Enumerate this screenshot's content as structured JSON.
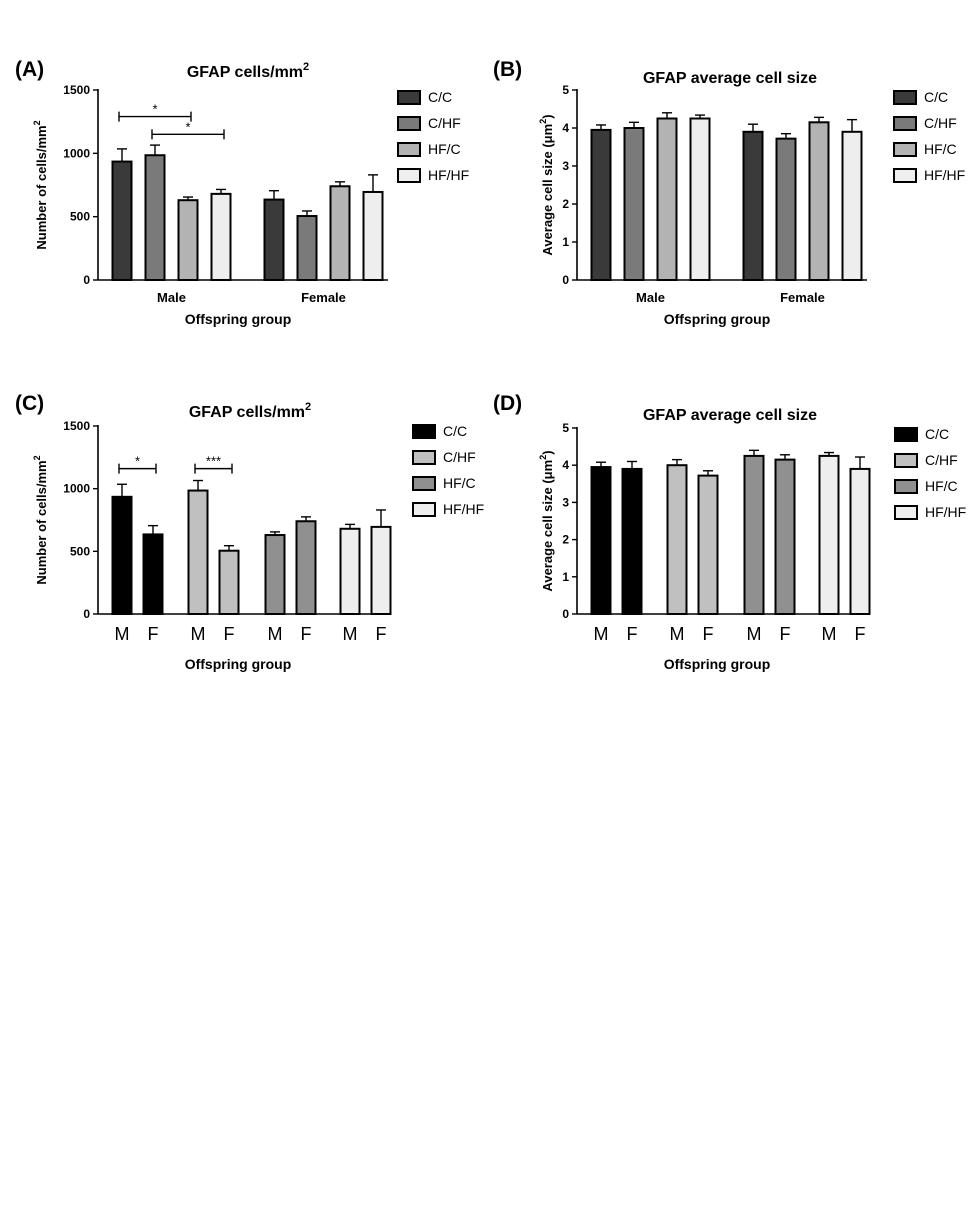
{
  "chart_data": [
    {
      "panel": "(A)",
      "type": "bar",
      "title": "GFAP cells/mm",
      "title_sup": "2",
      "xlabel": "Offspring group",
      "ylabel": "Number of cells/mm",
      "ylabel_sup": "2",
      "ylim": [
        0,
        1500
      ],
      "yticks": [
        "0",
        "500",
        "1000",
        "1500"
      ],
      "categories": [
        "Male",
        "Female"
      ],
      "series": [
        {
          "name": "C/C",
          "color": "#3a3a3a",
          "values": [
            935,
            635
          ],
          "errors": [
            100,
            70
          ]
        },
        {
          "name": "C/HF",
          "color": "#7a7a7a",
          "values": [
            985,
            505
          ],
          "errors": [
            80,
            40
          ]
        },
        {
          "name": "HF/C",
          "color": "#b3b3b3",
          "values": [
            630,
            740
          ],
          "errors": [
            25,
            35
          ]
        },
        {
          "name": "HF/HF",
          "color": "#eeeeee",
          "values": [
            680,
            695
          ],
          "errors": [
            35,
            135
          ]
        }
      ],
      "significance": [
        {
          "label": "*",
          "from": "Male C/C",
          "to": "Male HF/C",
          "y": 1290
        },
        {
          "label": "*",
          "from": "Male C/HF",
          "to": "Male HF/HF",
          "y": 1150
        }
      ],
      "legend": "right"
    },
    {
      "panel": "(B)",
      "type": "bar",
      "title": "GFAP average cell size",
      "xlabel": "Offspring group",
      "ylabel": "Average cell size (μm",
      "ylabel_sup": "2",
      "ylabel_close": ")",
      "ylim": [
        0,
        5
      ],
      "yticks": [
        "0",
        "1",
        "2",
        "3",
        "4",
        "5"
      ],
      "categories": [
        "Male",
        "Female"
      ],
      "series": [
        {
          "name": "C/C",
          "color": "#3a3a3a",
          "values": [
            3.95,
            3.9
          ],
          "errors": [
            0.13,
            0.2
          ]
        },
        {
          "name": "C/HF",
          "color": "#7a7a7a",
          "values": [
            4.0,
            3.72
          ],
          "errors": [
            0.15,
            0.13
          ]
        },
        {
          "name": "HF/C",
          "color": "#b3b3b3",
          "values": [
            4.25,
            4.15
          ],
          "errors": [
            0.15,
            0.13
          ]
        },
        {
          "name": "HF/HF",
          "color": "#eeeeee",
          "values": [
            4.25,
            3.9
          ],
          "errors": [
            0.09,
            0.32
          ]
        }
      ],
      "legend": "right"
    },
    {
      "panel": "(C)",
      "type": "bar",
      "title": "GFAP cells/mm",
      "title_sup": "2",
      "xlabel": "Offspring group",
      "ylabel": "Number of cells/mm",
      "ylabel_sup": "2",
      "ylim": [
        0,
        1500
      ],
      "yticks": [
        "0",
        "500",
        "1000",
        "1500"
      ],
      "categories": [
        "M",
        "F"
      ],
      "series": [
        {
          "name": "C/C",
          "color": "#000000",
          "values": [
            935,
            635
          ],
          "errors": [
            100,
            70
          ]
        },
        {
          "name": "C/HF",
          "color": "#c0c0c0",
          "values": [
            985,
            505
          ],
          "errors": [
            80,
            40
          ]
        },
        {
          "name": "HF/C",
          "color": "#909090",
          "values": [
            630,
            740
          ],
          "errors": [
            25,
            35
          ]
        },
        {
          "name": "HF/HF",
          "color": "#eeeeee",
          "values": [
            680,
            695
          ],
          "errors": [
            35,
            135
          ]
        }
      ],
      "significance": [
        {
          "label": "*",
          "group": "C/C",
          "y": 1160
        },
        {
          "label": "***",
          "group": "C/HF",
          "y": 1160
        }
      ],
      "legend": "right"
    },
    {
      "panel": "(D)",
      "type": "bar",
      "title": "GFAP average cell size",
      "xlabel": "Offspring group",
      "ylabel": "Average cell size (μm",
      "ylabel_sup": "2",
      "ylabel_close": ")",
      "ylim": [
        0,
        5
      ],
      "yticks": [
        "0",
        "1",
        "2",
        "3",
        "4",
        "5"
      ],
      "categories": [
        "M",
        "F"
      ],
      "series": [
        {
          "name": "C/C",
          "color": "#000000",
          "values": [
            3.95,
            3.9
          ],
          "errors": [
            0.13,
            0.2
          ]
        },
        {
          "name": "C/HF",
          "color": "#c0c0c0",
          "values": [
            4.0,
            3.72
          ],
          "errors": [
            0.15,
            0.13
          ]
        },
        {
          "name": "HF/C",
          "color": "#909090",
          "values": [
            4.25,
            4.15
          ],
          "errors": [
            0.15,
            0.13
          ]
        },
        {
          "name": "HF/HF",
          "color": "#eeeeee",
          "values": [
            4.25,
            3.9
          ],
          "errors": [
            0.09,
            0.32
          ]
        }
      ],
      "legend": "right"
    }
  ]
}
